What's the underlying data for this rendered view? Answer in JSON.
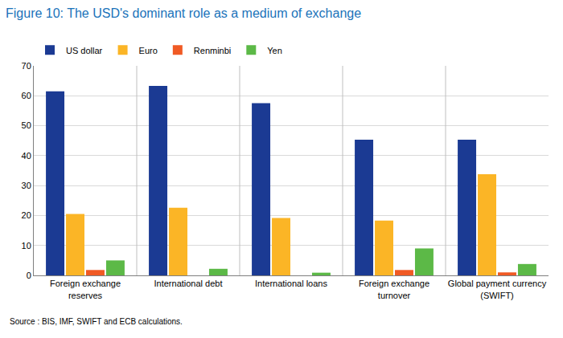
{
  "chart_data": {
    "type": "bar",
    "title": "Figure 10: The USD's dominant role as a medium of exchange",
    "source": "Source : BIS, IMF, SWIFT and ECB calculations.",
    "categories": [
      "Foreign exchange reserves",
      "International debt",
      "International loans",
      "Foreign exchange turnover",
      "Global payment currency (SWIFT)"
    ],
    "series": [
      {
        "name": "US dollar",
        "color": "#1b3a93",
        "values": [
          61.5,
          63.3,
          57.5,
          45.3,
          45.3
        ]
      },
      {
        "name": "Euro",
        "color": "#fbb526",
        "values": [
          20.5,
          22.6,
          19.2,
          18.3,
          33.8
        ]
      },
      {
        "name": "Renminbi",
        "color": "#f05a24",
        "values": [
          1.8,
          null,
          null,
          1.8,
          1.0
        ]
      },
      {
        "name": "Yen",
        "color": "#5cb947",
        "values": [
          5.0,
          2.2,
          0.9,
          9.0,
          3.8
        ]
      }
    ],
    "ylim": [
      0,
      70
    ],
    "yticks": [
      0,
      10,
      20,
      30,
      40,
      50,
      60,
      70
    ],
    "grid": true,
    "legend": "top left"
  }
}
